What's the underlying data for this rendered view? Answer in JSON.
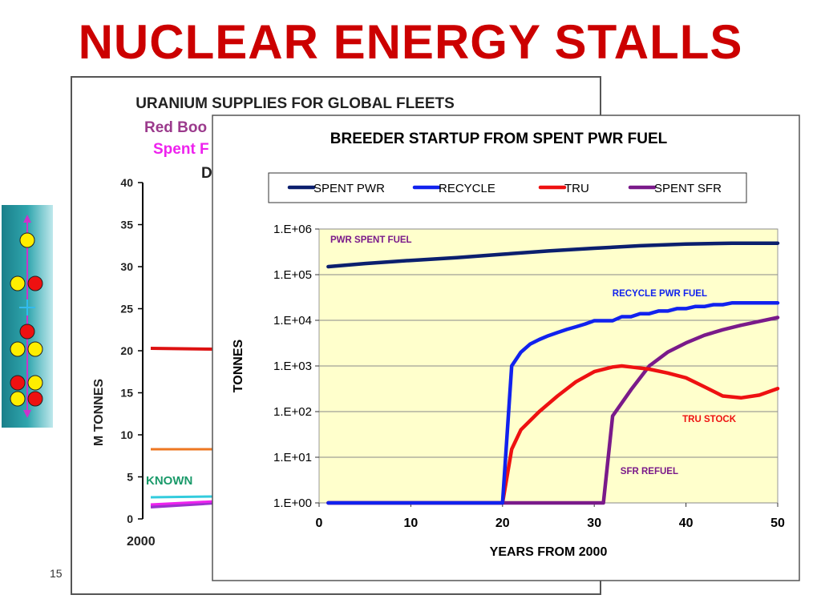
{
  "slide": {
    "title": "NUCLEAR ENERGY STALLS",
    "page_number": "15"
  },
  "back_chart": {
    "title": "URANIUM SUPPLIES FOR GLOBAL FLEETS",
    "subtitle_1": "Red Boo",
    "subtitle_2": "Spent F",
    "subtitle_3": "D",
    "ylabel": "M    TONNES",
    "y_ticks": [
      "0",
      "5",
      "10",
      "15",
      "20",
      "25",
      "30",
      "35",
      "40"
    ],
    "x_tick": "2000",
    "known_label": "KNOWN",
    "colors": {
      "subtitle_1": "#9b3a8c",
      "subtitle_2": "#ee22ee",
      "known": "#1a9a6a"
    }
  },
  "chart_data": {
    "type": "line",
    "title": "BREEDER STARTUP FROM  SPENT PWR FUEL",
    "xlabel": "YEARS FROM 2000",
    "ylabel": "TONNES",
    "xlim": [
      0,
      50
    ],
    "ylim": [
      1,
      1000000
    ],
    "y_scale": "log",
    "x_ticks": [
      0,
      10,
      20,
      30,
      40,
      50
    ],
    "x_tick_labels": [
      "0",
      "10",
      "20",
      "30",
      "40",
      "50"
    ],
    "y_ticks": [
      1,
      10,
      100,
      1000,
      10000,
      100000,
      1000000
    ],
    "y_tick_labels": [
      "1.E+00",
      "1.E+01",
      "1.E+02",
      "1.E+03",
      "1.E+04",
      "1.E+05",
      "1.E+06"
    ],
    "grid": "horizontal",
    "legend": "top",
    "plot_background": "#ffffcc",
    "series": [
      {
        "name": "SPENT PWR",
        "color": "#0b1f6e",
        "x": [
          1,
          5,
          10,
          15,
          20,
          25,
          30,
          35,
          40,
          45,
          50
        ],
        "y": [
          150000,
          175000,
          205000,
          235000,
          280000,
          330000,
          380000,
          430000,
          470000,
          490000,
          490000
        ]
      },
      {
        "name": "RECYCLE",
        "color": "#1122ee",
        "x": [
          1,
          20,
          21,
          22,
          23,
          24,
          25,
          26,
          27,
          28,
          29,
          30,
          31,
          32,
          33,
          34,
          35,
          36,
          37,
          38,
          39,
          40,
          41,
          42,
          43,
          44,
          45,
          46,
          47,
          48,
          49,
          50
        ],
        "y": [
          1,
          1,
          1000,
          2000,
          3000,
          3800,
          4600,
          5400,
          6300,
          7200,
          8300,
          9800,
          9800,
          9800,
          12000,
          12000,
          14000,
          14000,
          16000,
          16000,
          18000,
          18000,
          20000,
          20000,
          22000,
          22000,
          24000,
          24000,
          24000,
          24000,
          24000,
          24000
        ]
      },
      {
        "name": "TRU",
        "color": "#ee1111",
        "x": [
          1,
          20,
          21,
          22,
          24,
          26,
          28,
          30,
          32,
          33,
          34,
          36,
          38,
          40,
          42,
          44,
          46,
          48,
          50
        ],
        "y": [
          1,
          1,
          15,
          40,
          100,
          220,
          450,
          750,
          950,
          1000,
          950,
          850,
          700,
          550,
          350,
          220,
          200,
          230,
          320
        ]
      },
      {
        "name": "SPENT SFR",
        "color": "#7a1a8a",
        "x": [
          1,
          31,
          32,
          34,
          36,
          38,
          40,
          42,
          44,
          46,
          48,
          50
        ],
        "y": [
          1,
          1,
          80,
          300,
          1000,
          2000,
          3200,
          4700,
          6200,
          7800,
          9500,
          11500
        ]
      }
    ],
    "annotations": [
      {
        "text": "PWR SPENT FUEL",
        "color": "#7a1a8a"
      },
      {
        "text": "RECYCLE PWR FUEL",
        "color": "#1122ee"
      },
      {
        "text": "TRU STOCK",
        "color": "#ee1111"
      },
      {
        "text": "SFR REFUEL",
        "color": "#7a1a8a"
      }
    ]
  }
}
